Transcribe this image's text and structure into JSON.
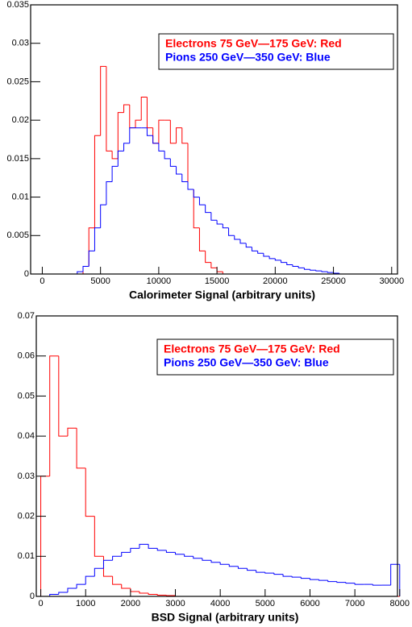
{
  "chart_data": [
    {
      "type": "histogram",
      "x_label": "Calorimeter Signal (arbitrary units)",
      "bins": [
        0,
        500,
        1000,
        1500,
        2000,
        2500,
        3000,
        3500,
        4000,
        4500,
        5000,
        5500,
        6000,
        6500,
        7000,
        7500,
        8000,
        8500,
        9000,
        9500,
        10000,
        10500,
        11000,
        11500,
        12000,
        12500,
        13000,
        13500,
        14000,
        14500,
        15000,
        15500,
        16000,
        16500,
        17000,
        17500,
        18000,
        18500,
        19000,
        19500,
        20000,
        20500,
        21000,
        21500,
        22000,
        22500,
        23000,
        23500,
        24000,
        24500,
        25000,
        25500,
        26000,
        26500,
        27000,
        27500,
        28000,
        28500,
        29000,
        29500,
        30000
      ],
      "series": [
        {
          "name": "Electrons 75 GeV—175 GeV: Red",
          "color": "#ff0000",
          "values": [
            0,
            0,
            0,
            0,
            0,
            0,
            0,
            0.001,
            0.006,
            0.018,
            0.027,
            0.016,
            0.015,
            0.021,
            0.022,
            0.019,
            0.02,
            0.023,
            0.019,
            0.017,
            0.02,
            0.02,
            0.017,
            0.019,
            0.017,
            0.011,
            0.006,
            0.003,
            0.0015,
            0.0008,
            0.0003,
            0,
            0,
            0,
            0,
            0,
            0,
            0,
            0,
            0,
            0,
            0,
            0,
            0,
            0,
            0,
            0,
            0,
            0,
            0,
            0,
            0,
            0,
            0,
            0,
            0,
            0,
            0,
            0,
            0
          ]
        },
        {
          "name": "Pions 250 GeV—350 GeV: Blue",
          "color": "#0000ff",
          "values": [
            0,
            0,
            0,
            0,
            0,
            0,
            0.0003,
            0.001,
            0.003,
            0.006,
            0.009,
            0.012,
            0.014,
            0.016,
            0.017,
            0.019,
            0.019,
            0.019,
            0.018,
            0.017,
            0.016,
            0.015,
            0.014,
            0.013,
            0.012,
            0.011,
            0.01,
            0.009,
            0.008,
            0.007,
            0.0065,
            0.006,
            0.005,
            0.0045,
            0.004,
            0.0035,
            0.003,
            0.0027,
            0.0023,
            0.002,
            0.0018,
            0.0015,
            0.0012,
            0.001,
            0.0008,
            0.0006,
            0.0005,
            0.0004,
            0.0003,
            0.0002,
            0.0001,
            0,
            0,
            0,
            0,
            0,
            0,
            0,
            0,
            0
          ]
        }
      ],
      "xlim": [
        -1000,
        30500
      ],
      "ylim": [
        0,
        0.035
      ],
      "xticks": [
        0,
        5000,
        10000,
        15000,
        20000,
        25000,
        30000
      ],
      "yticks": [
        0,
        0.005,
        0.01,
        0.015,
        0.02,
        0.025,
        0.03,
        0.035
      ],
      "legend": "top right"
    },
    {
      "type": "histogram",
      "x_label": "BSD Signal (arbitrary units)",
      "bins": [
        0,
        200,
        400,
        600,
        800,
        1000,
        1200,
        1400,
        1600,
        1800,
        2000,
        2200,
        2400,
        2600,
        2800,
        3000,
        3200,
        3400,
        3600,
        3800,
        4000,
        4200,
        4400,
        4600,
        4800,
        5000,
        5200,
        5400,
        5600,
        5800,
        6000,
        6200,
        6400,
        6600,
        6800,
        7000,
        7200,
        7400,
        7600,
        7800,
        8000
      ],
      "series": [
        {
          "name": "Electrons 75 GeV—175 GeV: Red",
          "color": "#ff0000",
          "values": [
            0.03,
            0.06,
            0.04,
            0.042,
            0.032,
            0.02,
            0.01,
            0.005,
            0.003,
            0.002,
            0.0012,
            0.0008,
            0.0005,
            0.0003,
            0.0002,
            0,
            0,
            0,
            0,
            0,
            0,
            0,
            0,
            0,
            0,
            0,
            0,
            0,
            0,
            0,
            0,
            0,
            0,
            0,
            0,
            0,
            0,
            0,
            0,
            0
          ]
        },
        {
          "name": "Pions 250 GeV—350 GeV: Blue",
          "color": "#0000ff",
          "values": [
            0,
            0.0005,
            0.001,
            0.002,
            0.003,
            0.005,
            0.007,
            0.009,
            0.01,
            0.011,
            0.012,
            0.013,
            0.012,
            0.0115,
            0.011,
            0.0105,
            0.01,
            0.0095,
            0.009,
            0.0085,
            0.008,
            0.0075,
            0.007,
            0.0065,
            0.006,
            0.0058,
            0.0055,
            0.005,
            0.0048,
            0.0045,
            0.0042,
            0.004,
            0.0037,
            0.0035,
            0.0033,
            0.003,
            0.003,
            0.0028,
            0.0028,
            0.008
          ]
        }
      ],
      "xlim": [
        -100,
        7950
      ],
      "ylim": [
        0,
        0.07
      ],
      "xticks": [
        0,
        1000,
        2000,
        3000,
        4000,
        5000,
        6000,
        7000,
        8000
      ],
      "yticks": [
        0,
        0.01,
        0.02,
        0.03,
        0.04,
        0.05,
        0.06,
        0.07
      ],
      "legend": "top right"
    }
  ]
}
